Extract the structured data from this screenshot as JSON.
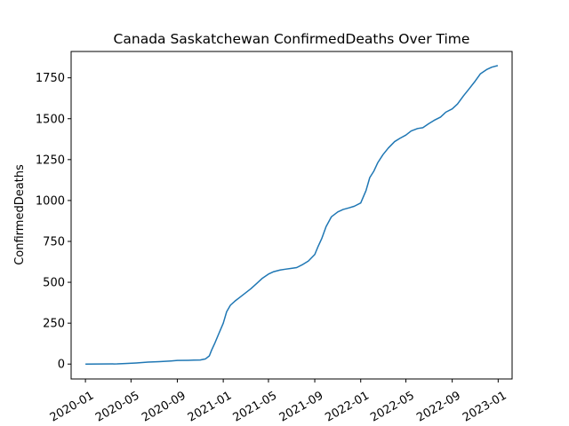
{
  "chart_data": {
    "type": "line",
    "title": "Canada Saskatchewan ConfirmedDeaths Over Time",
    "xlabel": "",
    "ylabel": "ConfirmedDeaths",
    "xlim": [
      "2019-11-24",
      "2023-02-07"
    ],
    "ylim": [
      -91,
      1911
    ],
    "grid": false,
    "legend": "none",
    "line_color": "#1f77b4",
    "x_ticks": [
      "2020-01",
      "2020-05",
      "2020-09",
      "2021-01",
      "2021-05",
      "2021-09",
      "2022-01",
      "2022-05",
      "2022-09",
      "2023-01"
    ],
    "y_ticks": [
      0,
      250,
      500,
      750,
      1000,
      1250,
      1500,
      1750
    ],
    "series": [
      {
        "x": [
          "2020-01-01",
          "2020-03-25",
          "2020-04-15",
          "2020-05-15",
          "2020-06-15",
          "2020-07-15",
          "2020-08-15",
          "2020-09-01",
          "2020-10-01",
          "2020-10-15",
          "2020-11-01",
          "2020-11-15",
          "2020-11-25",
          "2020-12-01",
          "2020-12-10",
          "2020-12-20",
          "2021-01-01",
          "2021-01-10",
          "2021-01-20",
          "2021-02-01",
          "2021-02-15",
          "2021-03-01",
          "2021-03-15",
          "2021-04-01",
          "2021-04-15",
          "2021-05-01",
          "2021-05-15",
          "2021-06-01",
          "2021-06-15",
          "2021-07-01",
          "2021-07-15",
          "2021-08-01",
          "2021-08-15",
          "2021-09-01",
          "2021-09-10",
          "2021-09-20",
          "2021-10-01",
          "2021-10-15",
          "2021-11-01",
          "2021-11-15",
          "2021-12-01",
          "2021-12-15",
          "2022-01-01",
          "2022-01-15",
          "2022-01-25",
          "2022-02-05",
          "2022-02-15",
          "2022-03-01",
          "2022-03-15",
          "2022-04-01",
          "2022-04-15",
          "2022-05-01",
          "2022-05-15",
          "2022-06-01",
          "2022-06-15",
          "2022-07-01",
          "2022-07-15",
          "2022-08-01",
          "2022-08-15",
          "2022-09-01",
          "2022-09-15",
          "2022-10-01",
          "2022-10-15",
          "2022-11-01",
          "2022-11-15",
          "2022-12-01",
          "2022-12-15",
          "2022-12-31"
        ],
        "y": [
          0,
          1,
          3,
          7,
          12,
          15,
          19,
          22,
          23,
          24,
          25,
          32,
          50,
          85,
          130,
          185,
          250,
          320,
          360,
          385,
          410,
          435,
          460,
          495,
          525,
          550,
          565,
          575,
          580,
          585,
          590,
          610,
          630,
          670,
          720,
          770,
          840,
          900,
          930,
          945,
          955,
          965,
          985,
          1060,
          1140,
          1180,
          1230,
          1280,
          1320,
          1360,
          1380,
          1400,
          1425,
          1440,
          1445,
          1470,
          1490,
          1510,
          1540,
          1560,
          1590,
          1640,
          1680,
          1730,
          1775,
          1800,
          1815,
          1825
        ]
      }
    ]
  }
}
